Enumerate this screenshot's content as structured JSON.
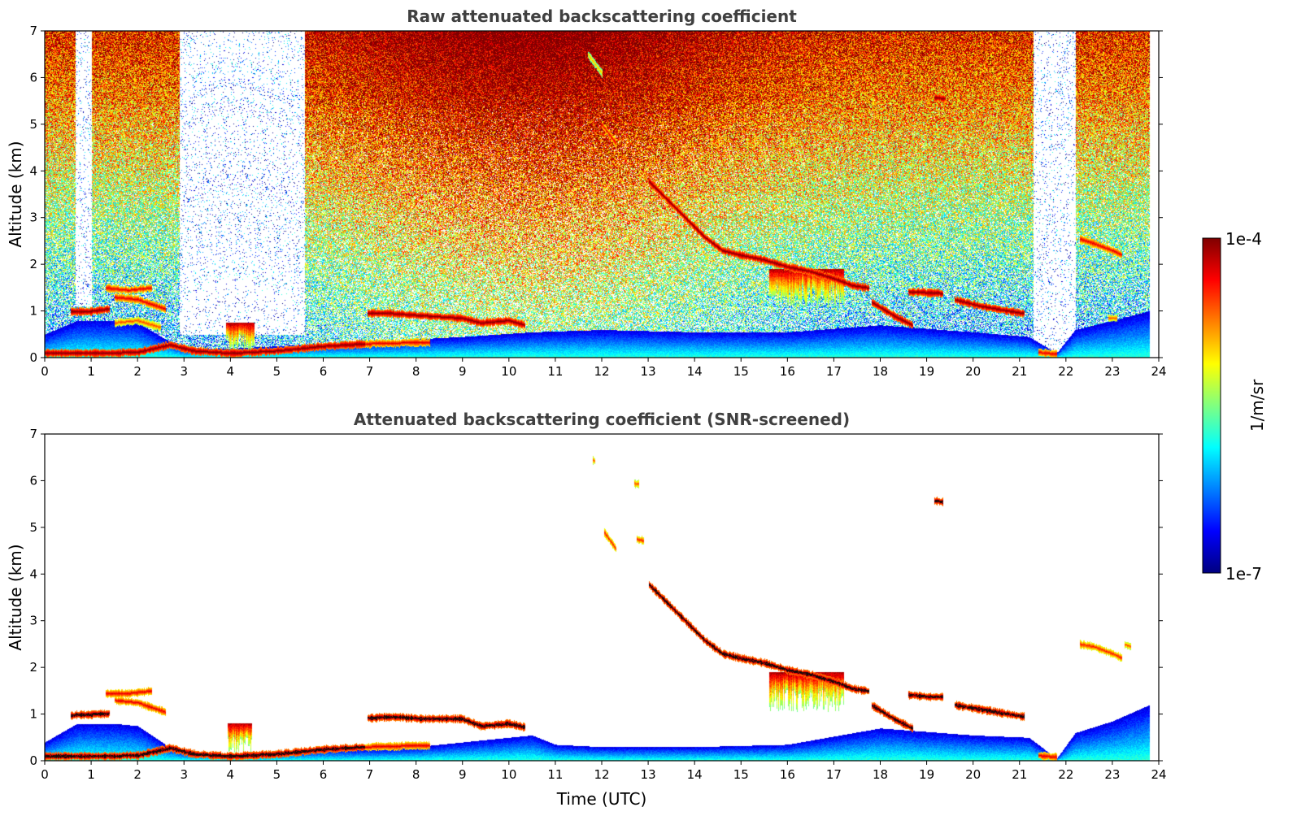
{
  "chart_data": [
    {
      "type": "heatmap",
      "title": "Raw attenuated backscattering coefficient",
      "xlabel": "",
      "ylabel": "Altitude (km)",
      "xlim": [
        0,
        24
      ],
      "ylim": [
        0,
        7
      ],
      "x_ticks": [
        0,
        1,
        2,
        3,
        4,
        5,
        6,
        7,
        8,
        9,
        10,
        11,
        12,
        13,
        14,
        15,
        16,
        17,
        18,
        19,
        20,
        21,
        22,
        23,
        24
      ],
      "y_ticks": [
        0,
        1,
        2,
        3,
        4,
        5,
        6,
        7
      ],
      "color_scale": "log",
      "noisy_background": true,
      "data_end_x": 23.8,
      "boundary_layer": [
        [
          0,
          0.5
        ],
        [
          0.7,
          0.8
        ],
        [
          1.5,
          0.8
        ],
        [
          2.0,
          0.75
        ],
        [
          2.6,
          0.4
        ],
        [
          3.0,
          0.2
        ],
        [
          4.0,
          0.2
        ],
        [
          5.0,
          0.25
        ],
        [
          6.0,
          0.3
        ],
        [
          7.0,
          0.35
        ],
        [
          8.0,
          0.4
        ],
        [
          9.0,
          0.45
        ],
        [
          10.5,
          0.55
        ],
        [
          12.0,
          0.6
        ],
        [
          14.0,
          0.55
        ],
        [
          16.0,
          0.55
        ],
        [
          18.0,
          0.7
        ],
        [
          20.0,
          0.55
        ],
        [
          21.2,
          0.45
        ],
        [
          21.8,
          0.1
        ],
        [
          22.2,
          0.6
        ],
        [
          23.0,
          0.8
        ],
        [
          23.8,
          1.0
        ]
      ],
      "cloud_layers": [
        {
          "points": [
            [
              0,
              0.1
            ],
            [
              1.0,
              0.1
            ],
            [
              2.0,
              0.12
            ],
            [
              2.7,
              0.28
            ],
            [
              3.2,
              0.15
            ],
            [
              4.0,
              0.1
            ],
            [
              5.0,
              0.15
            ],
            [
              6.0,
              0.25
            ],
            [
              6.9,
              0.3
            ]
          ],
          "intensity": 1.0
        },
        {
          "points": [
            [
              6.9,
              0.3
            ],
            [
              7.5,
              0.32
            ],
            [
              8.3,
              0.33
            ]
          ],
          "intensity": 0.9
        },
        {
          "points": [
            [
              0.55,
              1.0
            ],
            [
              1.0,
              1.0
            ],
            [
              1.4,
              1.05
            ]
          ],
          "intensity": 1.0
        },
        {
          "points": [
            [
              1.3,
              1.5
            ],
            [
              1.8,
              1.45
            ],
            [
              2.3,
              1.5
            ]
          ],
          "intensity": 0.9
        },
        {
          "points": [
            [
              1.5,
              1.3
            ],
            [
              2.0,
              1.25
            ],
            [
              2.6,
              1.05
            ]
          ],
          "intensity": 0.9
        },
        {
          "points": [
            [
              1.5,
              0.75
            ],
            [
              2.0,
              0.8
            ],
            [
              2.5,
              0.65
            ]
          ],
          "intensity": 0.8
        },
        {
          "points": [
            [
              6.95,
              0.95
            ],
            [
              7.5,
              0.95
            ],
            [
              8.2,
              0.9
            ],
            [
              9.0,
              0.85
            ],
            [
              9.4,
              0.75
            ],
            [
              10.0,
              0.8
            ],
            [
              10.35,
              0.7
            ]
          ],
          "intensity": 1.0
        },
        {
          "points": [
            [
              11.7,
              6.5
            ],
            [
              12.0,
              6.1
            ]
          ],
          "intensity": 0.7
        },
        {
          "points": [
            [
              12.0,
              5.0
            ],
            [
              12.3,
              4.6
            ]
          ],
          "intensity": 0.9
        },
        {
          "points": [
            [
              13.0,
              3.8
            ],
            [
              13.4,
              3.4
            ],
            [
              13.8,
              3.0
            ],
            [
              14.2,
              2.6
            ],
            [
              14.6,
              2.3
            ],
            [
              15.0,
              2.2
            ],
            [
              15.5,
              2.1
            ],
            [
              16.0,
              1.95
            ],
            [
              16.5,
              1.85
            ],
            [
              17.0,
              1.7
            ],
            [
              17.4,
              1.55
            ],
            [
              17.75,
              1.5
            ]
          ],
          "intensity": 1.0
        },
        {
          "points": [
            [
              17.8,
              1.2
            ],
            [
              18.3,
              0.9
            ],
            [
              18.7,
              0.7
            ]
          ],
          "intensity": 1.0
        },
        {
          "points": [
            [
              18.6,
              1.42
            ],
            [
              19.0,
              1.4
            ],
            [
              19.35,
              1.38
            ]
          ],
          "intensity": 1.0
        },
        {
          "points": [
            [
              19.6,
              1.25
            ],
            [
              20.2,
              1.1
            ],
            [
              20.8,
              1.0
            ],
            [
              21.1,
              0.95
            ]
          ],
          "intensity": 1.0
        },
        {
          "points": [
            [
              19.15,
              5.58
            ],
            [
              19.4,
              5.55
            ]
          ],
          "intensity": 1.0
        },
        {
          "points": [
            [
              21.4,
              0.12
            ],
            [
              21.8,
              0.08
            ]
          ],
          "intensity": 0.9
        },
        {
          "points": [
            [
              22.3,
              2.55
            ],
            [
              22.6,
              2.45
            ],
            [
              23.0,
              2.3
            ],
            [
              23.2,
              2.2
            ]
          ],
          "intensity": 0.9
        },
        {
          "points": [
            [
              22.9,
              0.85
            ],
            [
              23.1,
              0.85
            ]
          ],
          "intensity": 0.8
        }
      ],
      "precipitation": [
        {
          "x0": 15.6,
          "x1": 17.2,
          "top": 1.9,
          "bottom": 1.05
        },
        {
          "x0": 3.9,
          "x1": 4.5,
          "top": 0.75,
          "bottom": 0.15
        }
      ],
      "clear_gaps": [
        {
          "x0": 2.9,
          "x1": 5.6,
          "top": 7,
          "bottom": 0.5
        },
        {
          "x0": 21.3,
          "x1": 22.2,
          "top": 7,
          "bottom": 0.1
        },
        {
          "x0": 0.65,
          "x1": 1.0,
          "top": 7,
          "bottom": 1.1
        }
      ]
    },
    {
      "type": "heatmap",
      "title": "Attenuated backscattering coefficient (SNR-screened)",
      "xlabel": "Time (UTC)",
      "ylabel": "Altitude (km)",
      "xlim": [
        0,
        24
      ],
      "ylim": [
        0,
        7
      ],
      "x_ticks": [
        0,
        1,
        2,
        3,
        4,
        5,
        6,
        7,
        8,
        9,
        10,
        11,
        12,
        13,
        14,
        15,
        16,
        17,
        18,
        19,
        20,
        21,
        22,
        23,
        24
      ],
      "y_ticks": [
        0,
        1,
        2,
        3,
        4,
        5,
        6,
        7
      ],
      "color_scale": "log",
      "noisy_background": false,
      "data_end_x": 23.8,
      "boundary_layer": [
        [
          0,
          0.4
        ],
        [
          0.7,
          0.8
        ],
        [
          1.5,
          0.8
        ],
        [
          2.0,
          0.75
        ],
        [
          2.6,
          0.35
        ],
        [
          3.0,
          0.2
        ],
        [
          4.0,
          0.15
        ],
        [
          5.0,
          0.2
        ],
        [
          6.0,
          0.25
        ],
        [
          7.0,
          0.25
        ],
        [
          8.0,
          0.3
        ],
        [
          9.0,
          0.4
        ],
        [
          10.5,
          0.55
        ],
        [
          11.0,
          0.35
        ],
        [
          12.0,
          0.3
        ],
        [
          14.0,
          0.3
        ],
        [
          16.0,
          0.35
        ],
        [
          18.0,
          0.7
        ],
        [
          20.0,
          0.55
        ],
        [
          21.2,
          0.5
        ],
        [
          21.8,
          0.05
        ],
        [
          22.2,
          0.6
        ],
        [
          23.0,
          0.85
        ],
        [
          23.8,
          1.2
        ]
      ],
      "cloud_layers": [
        {
          "points": [
            [
              0,
              0.1
            ],
            [
              1.0,
              0.1
            ],
            [
              2.0,
              0.12
            ],
            [
              2.7,
              0.28
            ],
            [
              3.2,
              0.15
            ],
            [
              4.0,
              0.1
            ],
            [
              5.0,
              0.15
            ],
            [
              6.0,
              0.25
            ],
            [
              6.9,
              0.3
            ]
          ],
          "intensity": 1.0
        },
        {
          "points": [
            [
              6.9,
              0.3
            ],
            [
              7.5,
              0.32
            ],
            [
              8.3,
              0.33
            ]
          ],
          "intensity": 0.9
        },
        {
          "points": [
            [
              0.55,
              0.98
            ],
            [
              1.0,
              1.0
            ],
            [
              1.4,
              1.02
            ]
          ],
          "intensity": 1.0
        },
        {
          "points": [
            [
              1.3,
              1.45
            ],
            [
              1.8,
              1.45
            ],
            [
              2.3,
              1.5
            ]
          ],
          "intensity": 0.9
        },
        {
          "points": [
            [
              1.5,
              1.3
            ],
            [
              2.0,
              1.25
            ],
            [
              2.6,
              1.05
            ]
          ],
          "intensity": 0.9
        },
        {
          "points": [
            [
              6.95,
              0.92
            ],
            [
              7.5,
              0.95
            ],
            [
              8.2,
              0.9
            ],
            [
              9.0,
              0.9
            ],
            [
              9.4,
              0.75
            ],
            [
              10.0,
              0.8
            ],
            [
              10.35,
              0.72
            ]
          ],
          "intensity": 1.0
        },
        {
          "points": [
            [
              11.8,
              6.45
            ],
            [
              11.85,
              6.43
            ]
          ],
          "intensity": 0.8
        },
        {
          "points": [
            [
              12.7,
              5.95
            ],
            [
              12.8,
              5.93
            ]
          ],
          "intensity": 0.8
        },
        {
          "points": [
            [
              12.05,
              4.9
            ],
            [
              12.3,
              4.55
            ]
          ],
          "intensity": 0.85
        },
        {
          "points": [
            [
              12.75,
              4.75
            ],
            [
              12.9,
              4.72
            ]
          ],
          "intensity": 0.85
        },
        {
          "points": [
            [
              13.0,
              3.8
            ],
            [
              13.4,
              3.4
            ],
            [
              13.8,
              3.0
            ],
            [
              14.2,
              2.6
            ],
            [
              14.6,
              2.3
            ],
            [
              15.0,
              2.2
            ],
            [
              15.5,
              2.1
            ],
            [
              16.0,
              1.95
            ],
            [
              16.5,
              1.85
            ],
            [
              17.0,
              1.7
            ],
            [
              17.4,
              1.55
            ],
            [
              17.75,
              1.5
            ]
          ],
          "intensity": 1.0
        },
        {
          "points": [
            [
              17.8,
              1.2
            ],
            [
              18.3,
              0.9
            ],
            [
              18.7,
              0.7
            ]
          ],
          "intensity": 1.0
        },
        {
          "points": [
            [
              18.6,
              1.42
            ],
            [
              19.0,
              1.38
            ],
            [
              19.35,
              1.38
            ]
          ],
          "intensity": 1.0
        },
        {
          "points": [
            [
              19.6,
              1.2
            ],
            [
              20.2,
              1.1
            ],
            [
              20.8,
              1.0
            ],
            [
              21.1,
              0.95
            ]
          ],
          "intensity": 1.0
        },
        {
          "points": [
            [
              19.15,
              5.58
            ],
            [
              19.35,
              5.55
            ]
          ],
          "intensity": 1.0
        },
        {
          "points": [
            [
              21.4,
              0.12
            ],
            [
              21.8,
              0.08
            ]
          ],
          "intensity": 0.9
        },
        {
          "points": [
            [
              22.3,
              2.5
            ],
            [
              22.6,
              2.45
            ],
            [
              23.0,
              2.3
            ],
            [
              23.2,
              2.2
            ]
          ],
          "intensity": 0.85
        },
        {
          "points": [
            [
              23.25,
              2.5
            ],
            [
              23.4,
              2.45
            ]
          ],
          "intensity": 0.8
        }
      ],
      "precipitation": [
        {
          "x0": 15.6,
          "x1": 17.2,
          "top": 1.9,
          "bottom": 1.05
        },
        {
          "x0": 3.95,
          "x1": 4.45,
          "top": 0.8,
          "bottom": 0.15
        }
      ],
      "clear_gaps": []
    }
  ],
  "colorbar": {
    "max_label": "1e-4",
    "min_label": "1e-7",
    "unit_label": "1/m/sr",
    "colormap": "jet"
  }
}
